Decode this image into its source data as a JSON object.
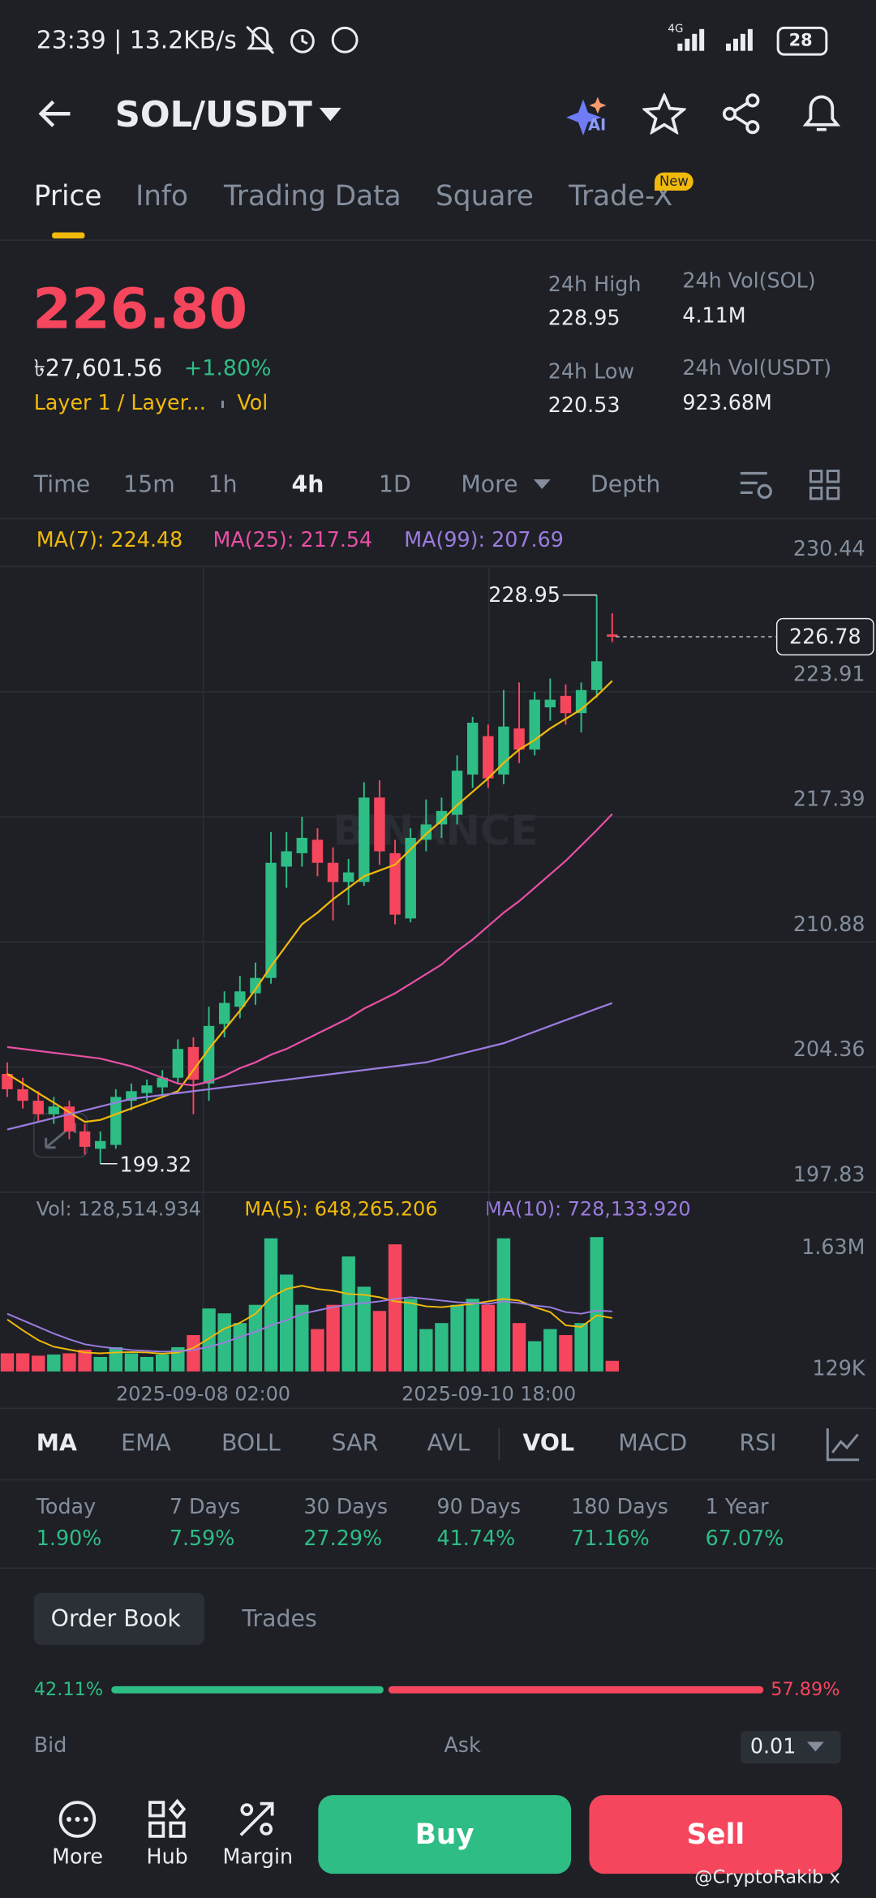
{
  "status_bar": {
    "time": "23:39 | 13.2KB/s",
    "network": "4G",
    "battery": "28"
  },
  "header": {
    "pair": "SOL/USDT",
    "ai_badge": "AI"
  },
  "tabs": [
    "Price",
    "Info",
    "Trading Data",
    "Square",
    "Trade-X"
  ],
  "new_badge": "New",
  "ticker": {
    "last_price": "226.80",
    "fiat_price": "৳27,601.56",
    "change": "+1.80%",
    "tags": [
      "Layer 1 / Layer...",
      "Vol"
    ],
    "stats": [
      {
        "label": "24h High",
        "value": "228.95"
      },
      {
        "label": "24h Vol(SOL)",
        "value": "4.11M"
      },
      {
        "label": "24h Low",
        "value": "220.53"
      },
      {
        "label": "24h Vol(USDT)",
        "value": "923.68M"
      }
    ]
  },
  "intervals": [
    "Time",
    "15m",
    "1h",
    "4h",
    "1D",
    "More",
    "Depth"
  ],
  "chart_data": {
    "type": "candlestick",
    "watermark": "BINANCE",
    "ylim": [
      197.83,
      230.44
    ],
    "yticks": [
      230.44,
      223.91,
      217.39,
      210.88,
      204.36,
      197.83
    ],
    "xlabels": [
      "2025-09-08 02:00",
      "2025-09-10 18:00"
    ],
    "candles": [
      [
        204.0,
        204.6,
        202.8,
        203.2
      ],
      [
        203.2,
        203.8,
        202.2,
        202.6
      ],
      [
        202.6,
        203.1,
        201.5,
        201.9
      ],
      [
        201.9,
        202.8,
        201.4,
        202.3
      ],
      [
        202.3,
        202.6,
        200.6,
        201.0
      ],
      [
        201.0,
        201.4,
        199.8,
        200.2
      ],
      [
        200.1,
        201.0,
        199.32,
        200.5
      ],
      [
        200.3,
        203.2,
        200.1,
        202.8
      ],
      [
        202.6,
        203.5,
        202.1,
        203.1
      ],
      [
        203.0,
        203.7,
        202.6,
        203.4
      ],
      [
        203.3,
        204.2,
        202.9,
        203.8
      ],
      [
        203.8,
        205.8,
        203.5,
        205.3
      ],
      [
        205.4,
        205.9,
        201.9,
        203.7
      ],
      [
        203.5,
        207.5,
        202.6,
        206.5
      ],
      [
        206.6,
        208.3,
        205.9,
        207.7
      ],
      [
        207.5,
        209.1,
        206.9,
        208.3
      ],
      [
        208.2,
        209.8,
        207.6,
        209.0
      ],
      [
        209.0,
        216.6,
        208.7,
        215.0
      ],
      [
        214.8,
        216.6,
        213.7,
        215.6
      ],
      [
        215.5,
        217.4,
        214.8,
        216.3
      ],
      [
        216.2,
        216.8,
        214.3,
        215.0
      ],
      [
        215.0,
        215.8,
        212.0,
        214.0
      ],
      [
        214.0,
        215.2,
        212.8,
        214.5
      ],
      [
        214.0,
        219.2,
        213.8,
        218.4
      ],
      [
        218.4,
        219.3,
        214.9,
        215.6
      ],
      [
        215.5,
        216.2,
        211.8,
        212.3
      ],
      [
        212.1,
        216.8,
        211.9,
        216.3
      ],
      [
        216.2,
        218.3,
        215.6,
        217.0
      ],
      [
        217.0,
        218.4,
        216.3,
        217.7
      ],
      [
        217.5,
        220.6,
        217.0,
        219.8
      ],
      [
        219.6,
        222.6,
        218.9,
        222.3
      ],
      [
        221.6,
        222.2,
        218.9,
        219.4
      ],
      [
        219.6,
        224.0,
        219.1,
        222.1
      ],
      [
        222.0,
        224.4,
        220.2,
        220.9
      ],
      [
        220.9,
        223.9,
        220.6,
        223.5
      ],
      [
        223.1,
        224.6,
        222.4,
        223.5
      ],
      [
        223.7,
        224.3,
        222.2,
        222.8
      ],
      [
        222.8,
        224.4,
        221.8,
        224.0
      ],
      [
        224.0,
        228.95,
        223.6,
        225.5
      ],
      [
        226.9,
        228.0,
        226.5,
        226.78
      ]
    ],
    "ma": [
      {
        "name": "MA(7)",
        "color": "#f0b90b",
        "values": [
          204.0,
          203.5,
          203.0,
          202.5,
          202.0,
          201.5,
          201.6,
          201.9,
          202.2,
          202.5,
          202.8,
          203.1,
          204.2,
          205.3,
          206.3,
          207.3,
          208.4,
          209.6,
          210.7,
          211.8,
          212.4,
          213.1,
          213.7,
          214.3,
          214.6,
          214.9,
          215.7,
          216.5,
          217.2,
          218.0,
          218.7,
          219.4,
          220.2,
          220.9,
          221.4,
          222.0,
          222.5,
          223.0,
          223.7,
          224.48
        ]
      },
      {
        "name": "MA(25)",
        "color": "#e84fa4",
        "values": [
          205.4,
          205.3,
          205.2,
          205.1,
          205.0,
          204.9,
          204.8,
          204.6,
          204.4,
          204.1,
          203.8,
          203.5,
          203.4,
          203.6,
          203.9,
          204.3,
          204.6,
          205.0,
          205.3,
          205.7,
          206.1,
          206.5,
          206.9,
          207.4,
          207.8,
          208.2,
          208.7,
          209.2,
          209.7,
          210.4,
          211.0,
          211.7,
          212.4,
          213.0,
          213.7,
          214.4,
          215.1,
          215.9,
          216.7,
          217.54
        ]
      },
      {
        "name": "MA(99)",
        "color": "#9c7ce0",
        "values": [
          201.1,
          201.3,
          201.5,
          201.7,
          201.9,
          202.1,
          202.3,
          202.5,
          202.7,
          202.8,
          202.9,
          203.0,
          203.1,
          203.2,
          203.3,
          203.4,
          203.5,
          203.6,
          203.7,
          203.8,
          203.9,
          204.0,
          204.1,
          204.2,
          204.3,
          204.4,
          204.5,
          204.6,
          204.8,
          205.0,
          205.2,
          205.4,
          205.6,
          205.9,
          206.2,
          206.5,
          206.8,
          207.1,
          207.4,
          207.69
        ]
      }
    ],
    "volume": {
      "name": "Vol",
      "current_label": "128,514.934",
      "ylim": [
        0,
        1630000
      ],
      "yticks": [
        {
          "value": 1630000,
          "label": "1.63M"
        },
        {
          "value": 129000,
          "label": "129K"
        }
      ],
      "values": [
        220000,
        220000,
        191000,
        206000,
        220000,
        264000,
        176000,
        294000,
        220000,
        176000,
        206000,
        294000,
        441000,
        764000,
        705000,
        587000,
        808000,
        1615000,
        1175000,
        808000,
        514000,
        808000,
        1395000,
        1028000,
        734000,
        1542000,
        881000,
        514000,
        587000,
        808000,
        881000,
        808000,
        1615000,
        587000,
        367000,
        514000,
        441000,
        587000,
        1630000,
        128514.934
      ],
      "ma": [
        {
          "name": "MA(5)",
          "color": "#f0b90b",
          "label": "648,265.206",
          "values": [
            630000,
            500000,
            380000,
            300000,
            264000,
            230000,
            220000,
            230000,
            235000,
            230000,
            215000,
            230000,
            285000,
            400000,
            520000,
            590000,
            700000,
            900000,
            1000000,
            1040000,
            1000000,
            980000,
            940000,
            930000,
            900000,
            850000,
            830000,
            790000,
            780000,
            800000,
            820000,
            850000,
            880000,
            860000,
            780000,
            720000,
            560000,
            540000,
            680000,
            648265.206
          ]
        },
        {
          "name": "MA(10)",
          "color": "#9c7ce0",
          "label": "728,133.920",
          "values": [
            700000,
            620000,
            540000,
            460000,
            390000,
            330000,
            300000,
            280000,
            260000,
            250000,
            240000,
            245000,
            260000,
            300000,
            350000,
            420000,
            480000,
            560000,
            620000,
            700000,
            740000,
            780000,
            810000,
            830000,
            850000,
            880000,
            900000,
            880000,
            860000,
            840000,
            830000,
            820000,
            850000,
            830000,
            800000,
            780000,
            720000,
            700000,
            740000,
            728133.92
          ]
        }
      ]
    }
  },
  "indicators": [
    "MA",
    "EMA",
    "BOLL",
    "SAR",
    "AVL",
    "VOL",
    "MACD",
    "RSI"
  ],
  "performance": [
    {
      "label": "Today",
      "value": "1.90%"
    },
    {
      "label": "7 Days",
      "value": "7.59%"
    },
    {
      "label": "30 Days",
      "value": "27.29%"
    },
    {
      "label": "90 Days",
      "value": "41.74%"
    },
    {
      "label": "180 Days",
      "value": "71.16%"
    },
    {
      "label": "1 Year",
      "value": "67.07%"
    }
  ],
  "order_book": {
    "tabs": [
      "Order Book",
      "Trades"
    ],
    "ratio": {
      "values": [
        42.11,
        57.89
      ],
      "value_labels": [
        "42.11%",
        "57.89%"
      ]
    },
    "bid_label": "Bid",
    "ask_label": "Ask",
    "precision": "0.01"
  },
  "bottom_nav": [
    "More",
    "Hub",
    "Margin"
  ],
  "buttons": {
    "buy": "Buy",
    "sell": "Sell"
  },
  "credit": "@CryptoRakib x"
}
